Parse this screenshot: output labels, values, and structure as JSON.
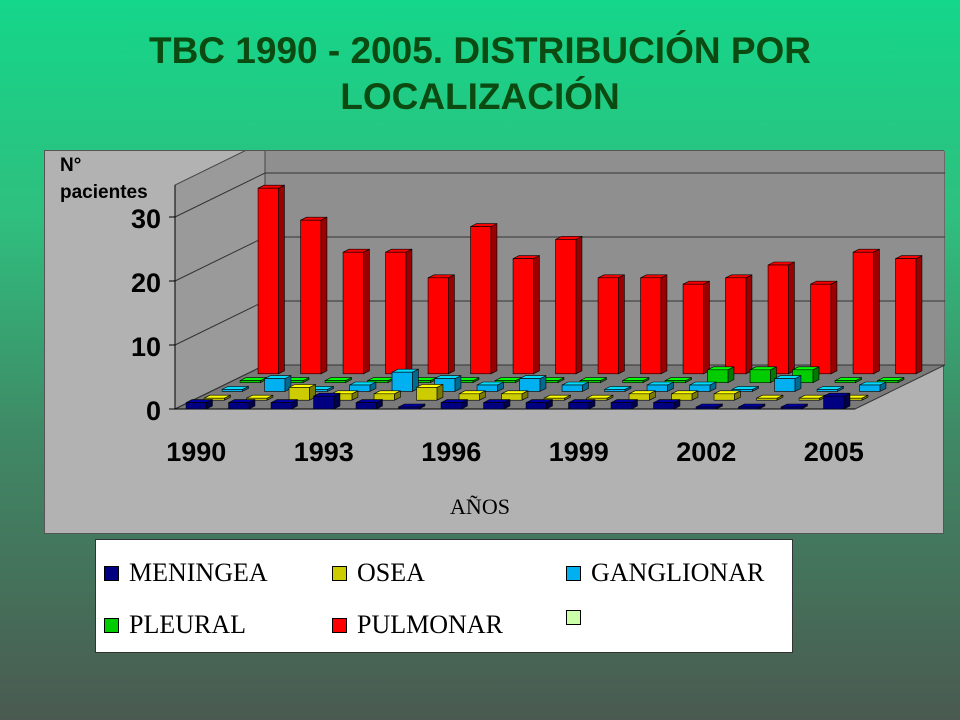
{
  "title_line1": "TBC 1990 - 2005. DISTRIBUCIÓN POR",
  "title_line2": "LOCALIZACIÓN",
  "chart_data": {
    "type": "bar",
    "title": "TBC 1990 - 2005. DISTRIBUCIÓN POR LOCALIZACIÓN",
    "xlabel": "AÑOS",
    "ylabel": "N°\npacientes",
    "ylim": [
      0,
      35
    ],
    "yticks": [
      0,
      10,
      20,
      30
    ],
    "categories": [
      "1990",
      "1991",
      "1992",
      "1993",
      "1994",
      "1995",
      "1996",
      "1997",
      "1998",
      "1999",
      "2000",
      "2001",
      "2002",
      "2003",
      "2004",
      "2005"
    ],
    "xtick_labels": [
      "1990",
      "1993",
      "1996",
      "1999",
      "2002",
      "2005"
    ],
    "grid": true,
    "legend_position": "bottom",
    "series": [
      {
        "name": "MENINGEA",
        "color": "#000080",
        "values": [
          1,
          1,
          1,
          2,
          1,
          0,
          1,
          1,
          1,
          1,
          1,
          1,
          0,
          0,
          0,
          2
        ]
      },
      {
        "name": "OSEA",
        "color": "#cccc00",
        "values": [
          0,
          0,
          2,
          1,
          1,
          2,
          1,
          1,
          0,
          0,
          1,
          1,
          1,
          0,
          0,
          0
        ]
      },
      {
        "name": "GANGLIONAR",
        "color": "#00b0f0",
        "values": [
          0,
          2,
          0,
          1,
          3,
          2,
          1,
          2,
          1,
          0,
          1,
          1,
          0,
          2,
          0,
          1
        ]
      },
      {
        "name": "PLEURAL",
        "color": "#00cc00",
        "values": [
          0,
          0,
          0,
          0,
          0,
          0,
          0,
          0,
          0,
          0,
          0,
          2,
          2,
          2,
          0,
          0
        ]
      },
      {
        "name": "PULMONAR",
        "color": "#ff0000",
        "values": [
          29,
          24,
          19,
          19,
          15,
          23,
          18,
          21,
          15,
          15,
          14,
          15,
          17,
          14,
          19,
          18
        ]
      },
      {
        "name": "",
        "color": "#ccffaa",
        "values": [
          0,
          0,
          0,
          0,
          0,
          0,
          0,
          0,
          0,
          0,
          0,
          0,
          0,
          0,
          0,
          0
        ]
      }
    ]
  },
  "legend_items": [
    {
      "label": "MENINGEA",
      "color": "#000080"
    },
    {
      "label": "OSEA",
      "color": "#cccc00"
    },
    {
      "label": "GANGLIONAR",
      "color": "#00b0f0"
    },
    {
      "label": "PLEURAL",
      "color": "#00cc00"
    },
    {
      "label": "PULMONAR",
      "color": "#ff0000"
    },
    {
      "label": "",
      "color": "#ccffaa"
    }
  ]
}
